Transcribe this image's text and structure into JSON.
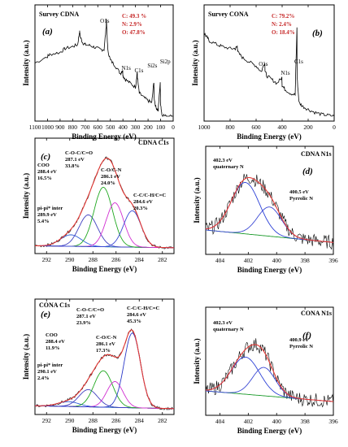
{
  "axis_labels": {
    "ylabel": "Intensity (a.u.)",
    "xlabel": "Binding Energy (eV)"
  },
  "chart_data": [
    {
      "panel": "a",
      "type": "line",
      "title": "Survey CDNA",
      "xlabel": "Binding Energy (eV)",
      "ylabel": "Intensity (a.u.)",
      "xlim": [
        1100,
        0
      ],
      "x_ticks": [
        1100,
        1000,
        900,
        800,
        700,
        600,
        500,
        400,
        300,
        200,
        100,
        0
      ],
      "composition": [
        "C: 49.3 %",
        "N: 2.9%",
        "O: 47.8%"
      ],
      "peak_labels": [
        {
          "text": "O1s",
          "x": 532
        },
        {
          "text": "N1s",
          "x": 400
        },
        {
          "text": "C1s",
          "x": 285
        },
        {
          "text": "Si2s",
          "x": 153
        },
        {
          "text": "Si2p",
          "x": 102
        }
      ],
      "series": [
        {
          "x": [
            1100,
            1000,
            980,
            900,
            860,
            800,
            760,
            745,
            740,
            720,
            700,
            660,
            620,
            580,
            550,
            533,
            532,
            520,
            500,
            460,
            420,
            402,
            400,
            380,
            340,
            300,
            286,
            285,
            270,
            240,
            200,
            170,
            154,
            152,
            140,
            120,
            103,
            101,
            90,
            60,
            30,
            0
          ],
          "y": [
            0.55,
            0.62,
            0.64,
            0.66,
            0.7,
            0.72,
            0.74,
            0.88,
            0.82,
            0.76,
            0.74,
            0.73,
            0.71,
            0.69,
            0.69,
            0.93,
            1.0,
            0.68,
            0.58,
            0.52,
            0.44,
            0.48,
            0.42,
            0.38,
            0.34,
            0.3,
            0.46,
            0.4,
            0.24,
            0.2,
            0.16,
            0.14,
            0.36,
            0.2,
            0.1,
            0.06,
            0.34,
            0.14,
            0.02,
            0.0,
            0.0,
            0.0
          ]
        }
      ]
    },
    {
      "panel": "b",
      "type": "line",
      "title": "Survey CONA",
      "xlabel": "Binding Energy (eV)",
      "ylabel": "Intensity (a.u.)",
      "xlim": [
        1000,
        0
      ],
      "x_ticks": [
        1000,
        800,
        600,
        400,
        200,
        0
      ],
      "composition": [
        "C: 79.2%",
        "N: 2.4%",
        "O: 18.4%"
      ],
      "peak_labels": [
        {
          "text": "O1s",
          "x": 532
        },
        {
          "text": "N1s",
          "x": 400
        },
        {
          "text": "C1s",
          "x": 285
        }
      ],
      "series": [
        {
          "x": [
            1000,
            980,
            960,
            900,
            860,
            800,
            760,
            745,
            740,
            700,
            650,
            600,
            560,
            533,
            532,
            520,
            480,
            440,
            402,
            400,
            380,
            340,
            300,
            286,
            285,
            270,
            240,
            200,
            150,
            100,
            50,
            0
          ],
          "y": [
            0.86,
            0.82,
            0.78,
            0.74,
            0.72,
            0.7,
            0.7,
            0.72,
            0.66,
            0.6,
            0.56,
            0.52,
            0.46,
            0.56,
            0.48,
            0.42,
            0.38,
            0.34,
            0.4,
            0.32,
            0.28,
            0.24,
            0.22,
            0.92,
            0.4,
            0.14,
            0.1,
            0.07,
            0.04,
            0.02,
            0.01,
            0.0
          ]
        }
      ]
    },
    {
      "panel": "c",
      "type": "line",
      "title": "CDNA C1s",
      "xlabel": "Binding Energy (eV)",
      "ylabel": "Intensity (a.u.)",
      "xlim": [
        293,
        281
      ],
      "x_ticks": [
        292,
        290,
        288,
        286,
        284,
        282
      ],
      "components": [
        {
          "label": [
            "pi-pi* inter",
            "289.9 eV",
            "5.4%"
          ],
          "center": 289.9,
          "height": 0.12,
          "sigma": 0.9,
          "color": "#2a5bd7"
        },
        {
          "label": [
            "COO",
            "288.4 eV",
            "16.5%"
          ],
          "center": 288.4,
          "height": 0.33,
          "sigma": 0.8,
          "color": "#3f3fbf"
        },
        {
          "label": [
            "C-O-C/C=O",
            "287.1 eV",
            "33.8%"
          ],
          "center": 287.1,
          "height": 0.62,
          "sigma": 0.8,
          "color": "#1fa81f"
        },
        {
          "label": [
            "C-O/C-N",
            "286.1 eV",
            "24.0%"
          ],
          "center": 286.1,
          "height": 0.46,
          "sigma": 0.75,
          "color": "#d12fd1"
        },
        {
          "label": [
            "C-C/C-H/C=C",
            "284.6 eV",
            "20.3%"
          ],
          "center": 284.6,
          "height": 0.38,
          "sigma": 0.75,
          "color": "#3a48d4"
        }
      ],
      "background": [
        0.03,
        0.01
      ]
    },
    {
      "panel": "d",
      "type": "line",
      "title": "CDNA N1s",
      "xlabel": "Binding Energy (eV)",
      "ylabel": "Intensity (a.u.)",
      "xlim": [
        405,
        396
      ],
      "x_ticks": [
        404,
        402,
        400,
        398,
        396
      ],
      "components": [
        {
          "label": [
            "402.3 eV",
            "quaternary N"
          ],
          "center": 402.2,
          "height": 0.58,
          "sigma": 1.0,
          "color": "#2a3fd6"
        },
        {
          "label": [
            "400.5 eV",
            "Pyrrolic N"
          ],
          "center": 400.5,
          "height": 0.33,
          "sigma": 0.85,
          "color": "#3a48d4"
        }
      ],
      "background": [
        0.22,
        0.08
      ]
    },
    {
      "panel": "e",
      "type": "line",
      "title": "CONA C1s",
      "xlabel": "Binding Energy (eV)",
      "ylabel": "Intensity (a.u.)",
      "xlim": [
        293,
        281
      ],
      "x_ticks": [
        292,
        290,
        288,
        286,
        284,
        282
      ],
      "components": [
        {
          "label": [
            "pi-pi* inter",
            "290.1 eV",
            "2.4%"
          ],
          "center": 290.1,
          "height": 0.05,
          "sigma": 0.9,
          "color": "#2a5bd7"
        },
        {
          "label": [
            "COO",
            "288.4 eV",
            "11.9%"
          ],
          "center": 288.4,
          "height": 0.18,
          "sigma": 0.8,
          "color": "#3f3fbf"
        },
        {
          "label": [
            "C-O-C/C=O",
            "287.1 eV",
            "23.9%"
          ],
          "center": 287.1,
          "height": 0.38,
          "sigma": 0.8,
          "color": "#1fa81f"
        },
        {
          "label": [
            "C-O/C-N",
            "286.1 eV",
            "17.3%"
          ],
          "center": 286.1,
          "height": 0.27,
          "sigma": 0.7,
          "color": "#d12fd1"
        },
        {
          "label": [
            "C-C/C-H/C=C",
            "284.6 eV",
            "45.3%"
          ],
          "center": 284.6,
          "height": 0.78,
          "sigma": 0.7,
          "color": "#2a38c8"
        }
      ],
      "background": [
        0.04,
        0.01
      ]
    },
    {
      "panel": "f",
      "type": "line",
      "title": "CONA N1s",
      "xlabel": "Binding Energy (eV)",
      "ylabel": "Intensity (a.u.)",
      "xlim": [
        405,
        396
      ],
      "x_ticks": [
        404,
        402,
        400,
        398,
        396
      ],
      "components": [
        {
          "label": [
            "402.3 eV",
            "quaternary N"
          ],
          "center": 402.2,
          "height": 0.42,
          "sigma": 1.0,
          "color": "#2a3fd6"
        },
        {
          "label": [
            "400.9 eV",
            "Pyrrolic N"
          ],
          "center": 400.9,
          "height": 0.32,
          "sigma": 0.8,
          "color": "#3a48d4"
        }
      ],
      "background": [
        0.22,
        0.1
      ]
    }
  ]
}
